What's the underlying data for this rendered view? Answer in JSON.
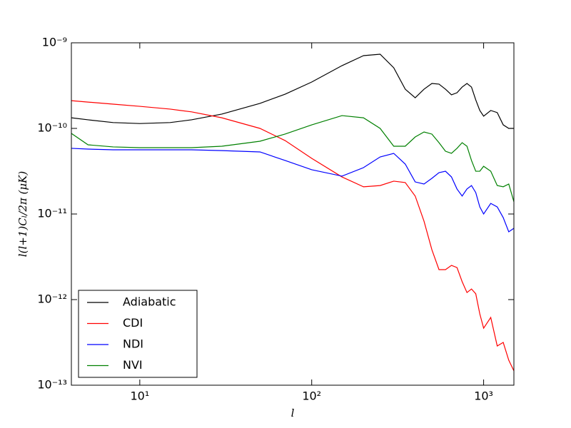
{
  "chart_data": {
    "type": "line",
    "x_label": "l",
    "y_label": "l(l+1)Cₗ/2π (μK)",
    "x_log": true,
    "y_log": true,
    "xlim": [
      4,
      1500
    ],
    "ylim": [
      1e-13,
      1e-09
    ],
    "xticks": [
      {
        "value": 10,
        "label": "10¹"
      },
      {
        "value": 100,
        "label": "10²"
      },
      {
        "value": 1000,
        "label": "10³"
      }
    ],
    "yticks": [
      {
        "value": 1e-13,
        "label": "10⁻¹³"
      },
      {
        "value": 1e-12,
        "label": "10⁻¹²"
      },
      {
        "value": 1e-11,
        "label": "10⁻¹¹"
      },
      {
        "value": 1e-10,
        "label": "10⁻¹⁰"
      },
      {
        "value": 1e-09,
        "label": "10⁻⁹"
      }
    ],
    "legend": "lower left",
    "x": [
      4,
      5,
      7,
      10,
      15,
      20,
      30,
      50,
      70,
      100,
      150,
      200,
      250,
      300,
      350,
      400,
      450,
      500,
      550,
      600,
      650,
      700,
      750,
      800,
      850,
      900,
      950,
      1000,
      1100,
      1200,
      1300,
      1400,
      1500
    ],
    "series": [
      {
        "name": "Adiabatic",
        "color": "#000000",
        "values": [
          1.33e-10,
          1.26e-10,
          1.17e-10,
          1.14e-10,
          1.17e-10,
          1.26e-10,
          1.47e-10,
          1.96e-10,
          2.51e-10,
          3.48e-10,
          5.41e-10,
          7.08e-10,
          7.36e-10,
          5.11e-10,
          2.87e-10,
          2.28e-10,
          2.87e-10,
          3.35e-10,
          3.29e-10,
          2.87e-10,
          2.47e-10,
          2.61e-10,
          3.04e-10,
          3.35e-10,
          3.04e-10,
          2.15e-10,
          1.62e-10,
          1.39e-10,
          1.62e-10,
          1.53e-10,
          1.1e-10,
          1e-10,
          1e-10
        ]
      },
      {
        "name": "CDI",
        "color": "#ff0000",
        "values": [
          2.11e-10,
          2.03e-10,
          1.92e-10,
          1.81e-10,
          1.68e-10,
          1.56e-10,
          1.33e-10,
          1e-10,
          7.21e-11,
          4.47e-11,
          2.71e-11,
          2.08e-11,
          2.15e-11,
          2.42e-11,
          2.33e-11,
          1.62e-11,
          8.25e-12,
          3.83e-12,
          2.24e-12,
          2.24e-12,
          2.51e-12,
          2.37e-12,
          1.62e-12,
          1.21e-12,
          1.33e-12,
          1.17e-12,
          6.81e-13,
          4.64e-13,
          6.19e-13,
          2.87e-13,
          3.16e-13,
          1.96e-13,
          1.47e-13
        ]
      },
      {
        "name": "NDI",
        "color": "#0000ff",
        "values": [
          5.85e-11,
          5.73e-11,
          5.62e-11,
          5.62e-11,
          5.62e-11,
          5.62e-11,
          5.5e-11,
          5.31e-11,
          4.22e-11,
          3.29e-11,
          2.77e-11,
          3.48e-11,
          4.64e-11,
          5.11e-11,
          3.83e-11,
          2.37e-11,
          2.24e-11,
          2.61e-11,
          3.04e-11,
          3.16e-11,
          2.71e-11,
          1.96e-11,
          1.62e-11,
          1.96e-11,
          2.15e-11,
          1.78e-11,
          1.21e-11,
          1e-11,
          1.33e-11,
          1.21e-11,
          9.08e-12,
          6.19e-12,
          6.81e-12
        ]
      },
      {
        "name": "NVI",
        "color": "#008000",
        "values": [
          8.74e-11,
          6.43e-11,
          6.08e-11,
          5.96e-11,
          5.96e-11,
          5.96e-11,
          6.19e-11,
          7.08e-11,
          8.58e-11,
          1.1e-10,
          1.41e-10,
          1.33e-10,
          1e-10,
          6.19e-11,
          6.19e-11,
          7.94e-11,
          9.08e-11,
          8.58e-11,
          6.81e-11,
          5.41e-11,
          5.11e-11,
          5.85e-11,
          6.81e-11,
          6.19e-11,
          4.22e-11,
          3.16e-11,
          3.16e-11,
          3.61e-11,
          3.16e-11,
          2.15e-11,
          2.08e-11,
          2.24e-11,
          1.39e-11
        ]
      }
    ]
  }
}
